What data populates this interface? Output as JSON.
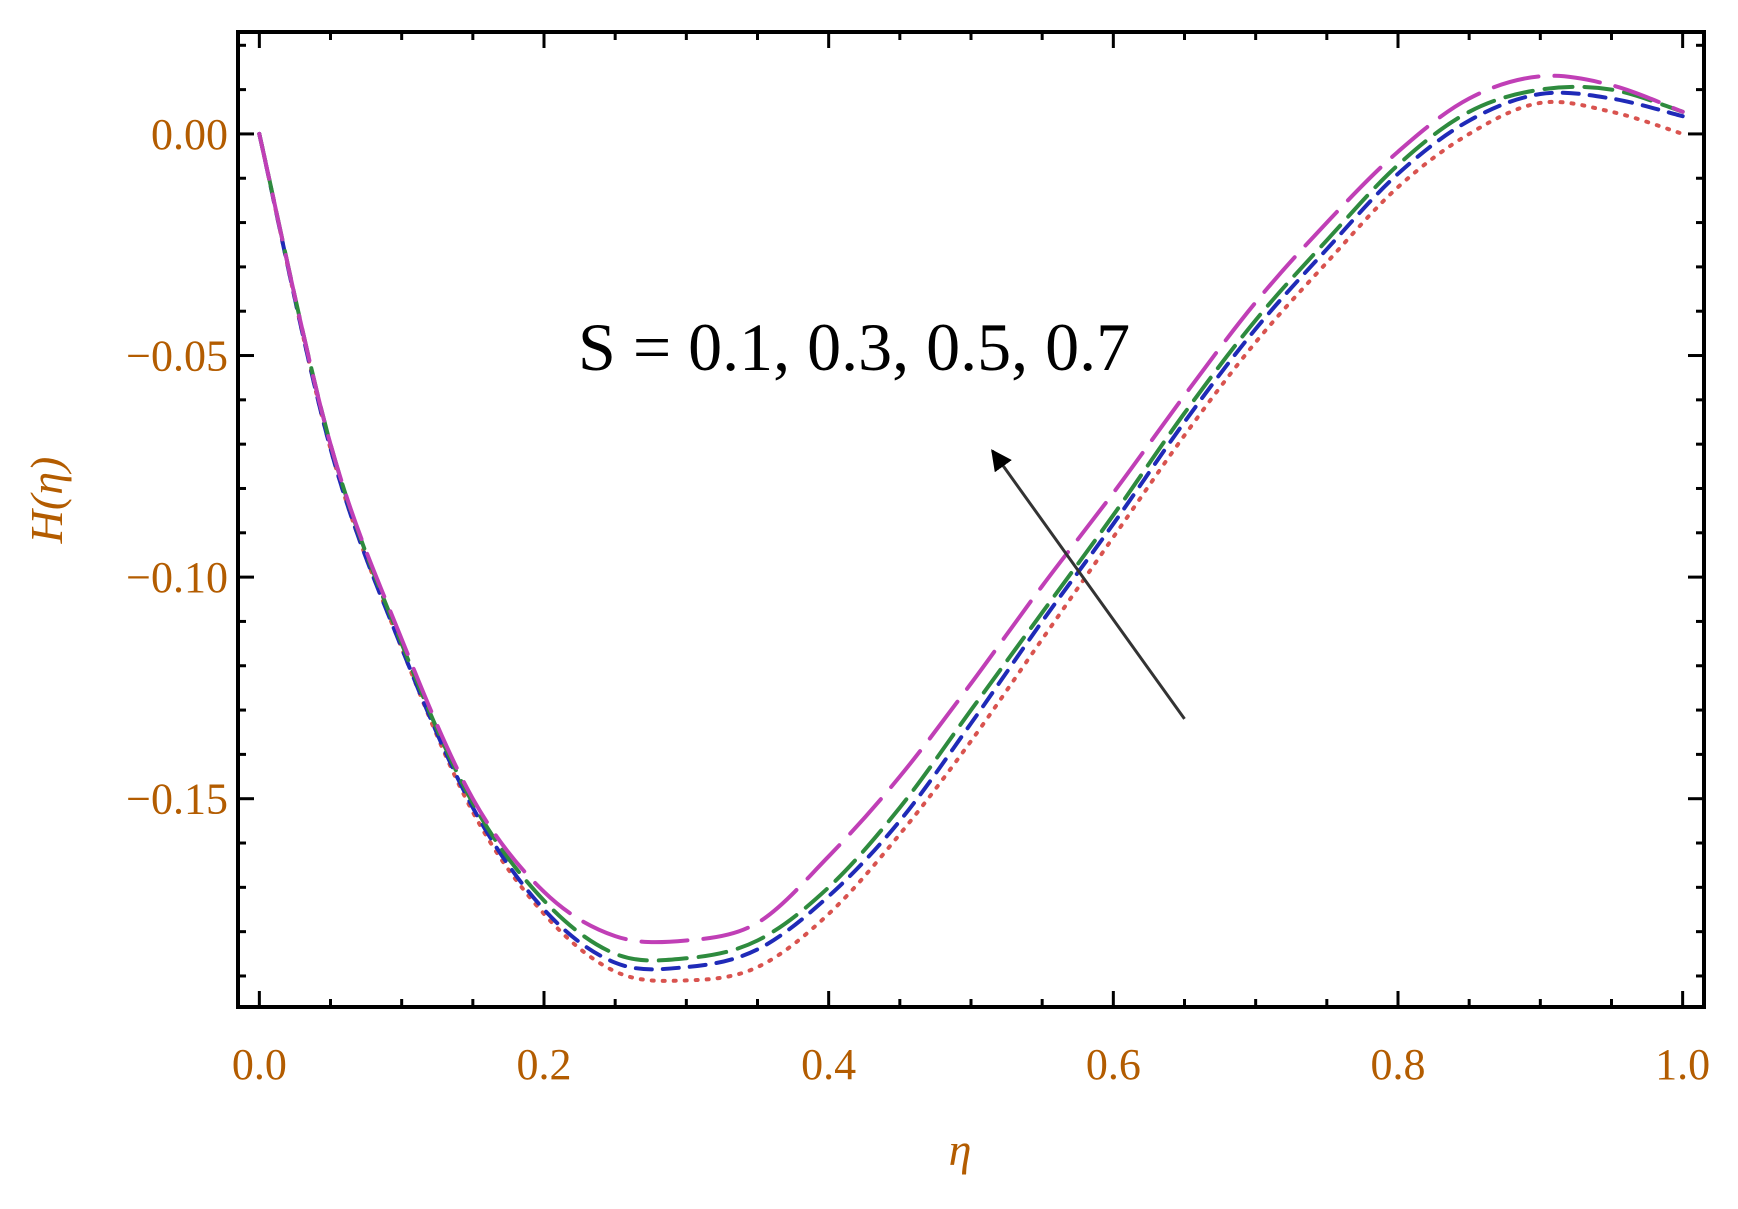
{
  "chart_data": {
    "type": "line",
    "title": "",
    "xlabel": "η",
    "ylabel": "H(η)",
    "xlim": [
      -0.015,
      1.015
    ],
    "ylim": [
      -0.197,
      0.023
    ],
    "x_ticks": [
      0.0,
      0.2,
      0.4,
      0.6,
      0.8,
      1.0
    ],
    "x_tick_labels": [
      "0.0",
      "0.2",
      "0.4",
      "0.6",
      "0.8",
      "1.0"
    ],
    "y_ticks": [
      0.0,
      -0.05,
      -0.1,
      -0.15
    ],
    "y_tick_labels": [
      "0.00",
      "−0.05",
      "−0.10",
      "−0.15"
    ],
    "grid": false,
    "legend": "none",
    "annotation": {
      "text": "S = 0.1, 0.3, 0.5, 0.7",
      "arrow": {
        "from": [
          0.65,
          -0.132
        ],
        "to": [
          0.515,
          -0.0715
        ]
      }
    },
    "x": [
      0.0,
      0.05,
      0.1,
      0.15,
      0.2,
      0.25,
      0.3,
      0.35,
      0.4,
      0.45,
      0.5,
      0.55,
      0.6,
      0.65,
      0.7,
      0.75,
      0.8,
      0.85,
      0.9,
      0.95,
      1.0
    ],
    "series": [
      {
        "color": "#d9534f",
        "dash": "2 9",
        "values": [
          0.0,
          -0.071,
          -0.116,
          -0.153,
          -0.176,
          -0.189,
          -0.191,
          -0.188,
          -0.176,
          -0.158,
          -0.137,
          -0.114,
          -0.091,
          -0.068,
          -0.047,
          -0.029,
          -0.012,
          0.0,
          0.007,
          0.005,
          0.0
        ]
      },
      {
        "color": "#1f2ab8",
        "dash": "16 11",
        "values": [
          0.0,
          -0.071,
          -0.116,
          -0.152,
          -0.175,
          -0.187,
          -0.188,
          -0.184,
          -0.172,
          -0.155,
          -0.133,
          -0.11,
          -0.088,
          -0.065,
          -0.044,
          -0.026,
          -0.009,
          0.003,
          0.009,
          0.008,
          0.004
        ]
      },
      {
        "color": "#2e8b3e",
        "dash": "28 12",
        "values": [
          0.0,
          -0.07,
          -0.115,
          -0.151,
          -0.173,
          -0.185,
          -0.186,
          -0.182,
          -0.17,
          -0.152,
          -0.13,
          -0.108,
          -0.086,
          -0.063,
          -0.042,
          -0.024,
          -0.007,
          0.005,
          0.01,
          0.01,
          0.005
        ]
      },
      {
        "color": "#c03fb6",
        "dash": "46 16",
        "values": [
          0.0,
          -0.07,
          -0.114,
          -0.15,
          -0.171,
          -0.181,
          -0.182,
          -0.178,
          -0.163,
          -0.145,
          -0.124,
          -0.102,
          -0.081,
          -0.059,
          -0.038,
          -0.02,
          -0.004,
          0.008,
          0.013,
          0.011,
          0.005
        ]
      }
    ]
  }
}
